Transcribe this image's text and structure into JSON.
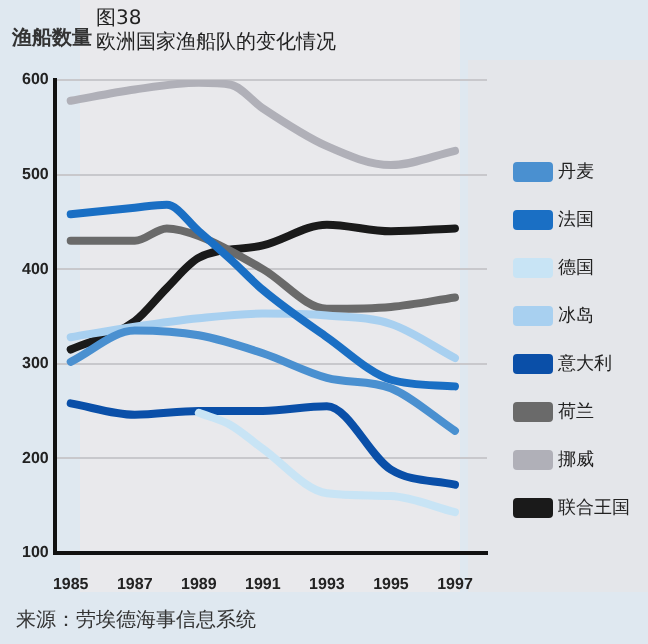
{
  "chart_data": {
    "type": "line",
    "title": "图38",
    "subtitle": "欧洲国家渔船队的变化情况",
    "ylabel": "渔船数量",
    "annotations": [
      "来源：劳埃德海事信息系统"
    ],
    "xlim": [
      1984.5,
      1998
    ],
    "xticks": [
      1985,
      1987,
      1989,
      1991,
      1993,
      1995,
      1997
    ],
    "ylim": [
      100,
      600
    ],
    "yticks": [
      100,
      200,
      300,
      400,
      500,
      600
    ],
    "grid": "y",
    "legend": "right",
    "marker": "none",
    "line_style": "solid",
    "series": [
      {
        "name": "丹麦",
        "color": "#4a90d0",
        "x": [
          1985,
          1987,
          1989,
          1991,
          1993,
          1995,
          1997
        ],
        "values": [
          302,
          335,
          330,
          311,
          285,
          274,
          229
        ]
      },
      {
        "name": "法国",
        "color": "#1a6fc4",
        "x": [
          1985,
          1987,
          1988,
          1989,
          1990,
          1991,
          1993,
          1995,
          1997
        ],
        "values": [
          458,
          465,
          468,
          440,
          410,
          378,
          328,
          283,
          276
        ]
      },
      {
        "name": "德国",
        "color": "#c8e4f5",
        "x": [
          1989,
          1990,
          1991,
          1993,
          1995,
          1997
        ],
        "values": [
          248,
          235,
          210,
          163,
          160,
          143
        ]
      },
      {
        "name": "冰岛",
        "color": "#a8d0f0",
        "x": [
          1985,
          1987,
          1989,
          1991,
          1993,
          1995,
          1997
        ],
        "values": [
          328,
          339,
          348,
          353,
          351,
          342,
          306
        ]
      },
      {
        "name": "意大利",
        "color": "#0a4fa8",
        "x": [
          1985,
          1987,
          1989,
          1991,
          1993,
          1995,
          1997
        ],
        "values": [
          258,
          246,
          250,
          250,
          255,
          188,
          172
        ]
      },
      {
        "name": "荷兰",
        "color": "#6a6a6a",
        "x": [
          1985,
          1987,
          1988,
          1989,
          1991,
          1993,
          1995,
          1997
        ],
        "values": [
          430,
          430,
          443,
          435,
          400,
          358,
          360,
          370
        ]
      },
      {
        "name": "挪威",
        "color": "#b0b0b8",
        "x": [
          1985,
          1987,
          1989,
          1990,
          1991,
          1993,
          1995,
          1997
        ],
        "values": [
          578,
          590,
          597,
          595,
          570,
          530,
          510,
          525
        ]
      },
      {
        "name": "联合王国",
        "color": "#1a1a1a",
        "x": [
          1985,
          1987,
          1988,
          1989,
          1991,
          1993,
          1995,
          1997
        ],
        "values": [
          315,
          345,
          380,
          412,
          425,
          447,
          440,
          443
        ]
      }
    ]
  }
}
